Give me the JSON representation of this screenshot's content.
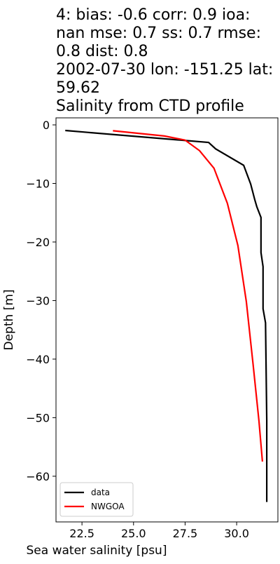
{
  "chart_data": {
    "type": "line",
    "title": [
      "4: bias: -0.6  corr: 0.9  ioa:",
      "nan  mse: 0.7  ss: 0.7  rmse:",
      "0.8  dist: 0.8",
      "2002-07-30 lon: -151.25 lat:",
      "59.62",
      "Salinity from CTD profile"
    ],
    "x_label": "Sea water salinity [psu]",
    "y_label": "Depth [m]",
    "xlim": [
      21.24,
      32.0
    ],
    "ylim": [
      -67.8,
      1.2
    ],
    "xticks": [
      22.5,
      {
        "value": 25,
        "label": "25.0"
      },
      27.5,
      {
        "value": 30,
        "label": "30.0"
      }
    ],
    "yticks": [
      0,
      {
        "value": -10,
        "label": "−10"
      },
      {
        "value": -20,
        "label": "−20"
      },
      {
        "value": -30,
        "label": "−30"
      },
      {
        "value": -40,
        "label": "−40"
      },
      {
        "value": -50,
        "label": "−50"
      },
      {
        "value": -60,
        "label": "−60"
      }
    ],
    "legend": "lower left",
    "series": [
      {
        "name": "data",
        "color": "#000000",
        "x": [
          21.69,
          28.64,
          28.98,
          30.34,
          30.68,
          30.88,
          30.98,
          31.18,
          31.18,
          31.28,
          31.28,
          31.4,
          31.46,
          31.46
        ],
        "values": [
          -0.96,
          -3.0,
          -4.1,
          -6.9,
          -10.1,
          -12.8,
          -14.0,
          -15.8,
          -21.8,
          -24.2,
          -31.4,
          -33.8,
          -50.5,
          -64.4
        ]
      },
      {
        "name": "NWGOA",
        "color": "#ff0000",
        "x": [
          24.0,
          26.5,
          27.5,
          28.2,
          28.9,
          29.55,
          30.06,
          30.47,
          30.8,
          31.08,
          31.25
        ],
        "values": [
          -1.0,
          -1.9,
          -2.6,
          -4.4,
          -7.4,
          -13.4,
          -20.6,
          -30.2,
          -41.0,
          -50.5,
          -57.5
        ]
      }
    ]
  }
}
